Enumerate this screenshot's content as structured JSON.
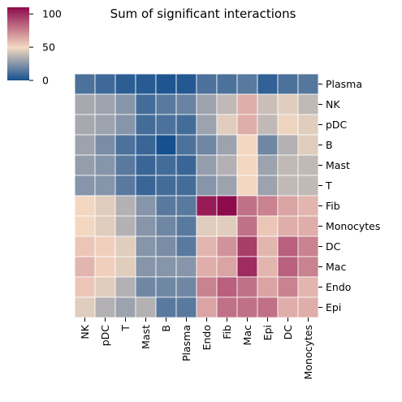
{
  "chart_data": {
    "type": "heatmap",
    "title": "Sum of significant interactions",
    "rows": [
      "Plasma",
      "NK",
      "pDC",
      "B",
      "Mast",
      "T",
      "Fib",
      "Monocytes",
      "DC",
      "Mac",
      "Endo",
      "Epi"
    ],
    "columns": [
      "NK",
      "pDC",
      "T",
      "Mast",
      "B",
      "Plasma",
      "Endo",
      "Fib",
      "Mac",
      "Epi",
      "DC",
      "Monocytes"
    ],
    "values": [
      [
        12,
        9,
        5,
        4,
        2,
        3,
        12,
        12,
        15,
        6,
        12,
        14
      ],
      [
        32,
        30,
        25,
        10,
        15,
        18,
        30,
        38,
        62,
        40,
        45,
        38
      ],
      [
        32,
        30,
        25,
        10,
        12,
        10,
        30,
        45,
        62,
        38,
        48,
        45
      ],
      [
        30,
        22,
        12,
        8,
        0,
        12,
        20,
        30,
        50,
        20,
        35,
        45
      ],
      [
        28,
        25,
        15,
        8,
        10,
        8,
        28,
        35,
        50,
        30,
        38,
        38
      ],
      [
        25,
        25,
        15,
        8,
        10,
        10,
        25,
        30,
        50,
        30,
        38,
        38
      ],
      [
        50,
        45,
        35,
        25,
        15,
        15,
        105,
        110,
        80,
        75,
        65,
        60
      ],
      [
        50,
        45,
        35,
        25,
        20,
        15,
        45,
        45,
        80,
        55,
        62,
        62
      ],
      [
        55,
        52,
        45,
        25,
        22,
        15,
        60,
        70,
        95,
        60,
        85,
        75
      ],
      [
        60,
        52,
        45,
        25,
        25,
        25,
        62,
        65,
        100,
        60,
        85,
        75
      ],
      [
        55,
        45,
        35,
        20,
        20,
        20,
        75,
        85,
        80,
        65,
        75,
        60
      ],
      [
        45,
        35,
        30,
        35,
        15,
        15,
        65,
        80,
        80,
        80,
        62,
        62
      ]
    ],
    "colorbar": {
      "range": [
        0,
        110
      ],
      "ticks": [
        0,
        50,
        100
      ]
    },
    "colors": {
      "low": "#16508f",
      "mid": "#f4d9c2",
      "high": "#8d0a4c"
    }
  }
}
